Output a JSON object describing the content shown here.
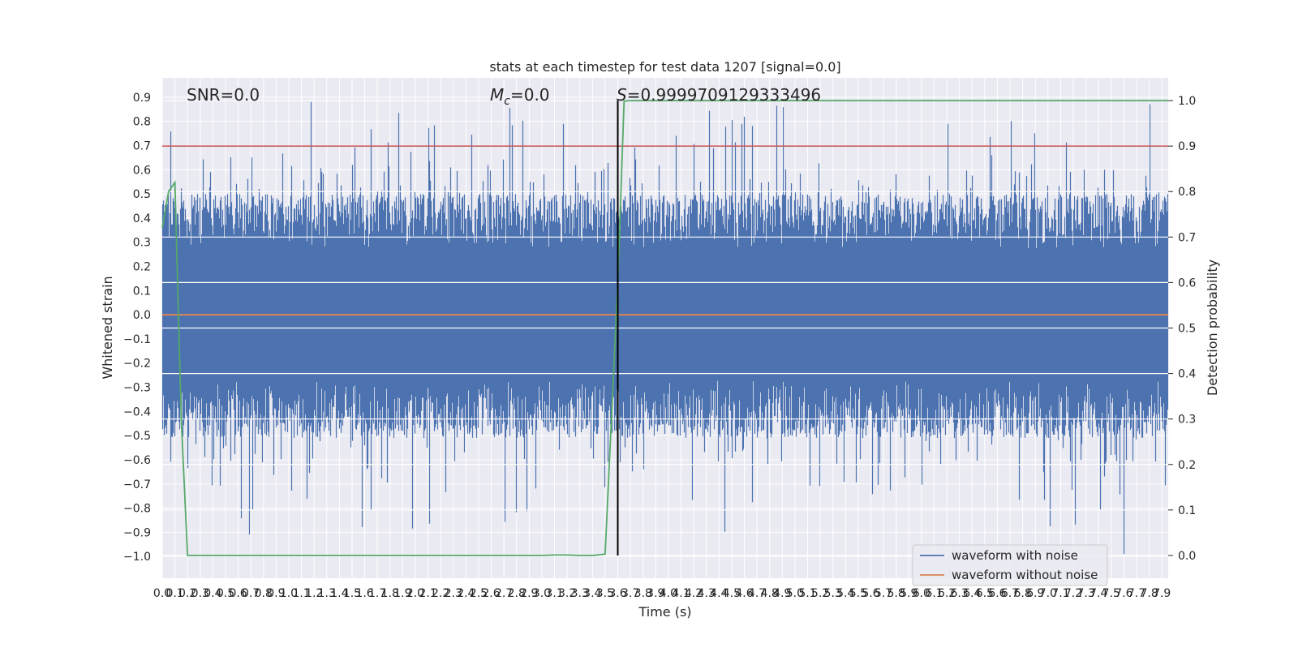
{
  "chart_data": {
    "type": "line",
    "title": "stats at each timestep for test data 1207 [signal=0.0]",
    "xlabel": "Time (s)",
    "ylabel": "Whitened strain",
    "ylabel_right": "Detection probability",
    "xlim": [
      0.0,
      7.95
    ],
    "ylim": [
      -1.09,
      0.98
    ],
    "ylim_right": [
      -0.05,
      1.05
    ],
    "x_ticks": [
      "0.0",
      "0.1",
      "0.2",
      "0.3",
      "0.4",
      "0.5",
      "0.6",
      "0.7",
      "0.8",
      "0.9",
      "1.0",
      "1.1",
      "1.2",
      "1.3",
      "1.4",
      "1.5",
      "1.6",
      "1.7",
      "1.8",
      "1.9",
      "2.0",
      "2.1",
      "2.2",
      "2.3",
      "2.4",
      "2.5",
      "2.6",
      "2.7",
      "2.8",
      "2.9",
      "3.0",
      "3.1",
      "3.2",
      "3.3",
      "3.4",
      "3.5",
      "3.6",
      "3.7",
      "3.8",
      "3.9",
      "4.0",
      "4.1",
      "4.2",
      "4.3",
      "4.4",
      "4.5",
      "4.6",
      "4.7",
      "4.8",
      "4.9",
      "5.0",
      "5.1",
      "5.2",
      "5.3",
      "5.4",
      "5.5",
      "5.6",
      "5.7",
      "5.8",
      "5.9",
      "6.0",
      "6.1",
      "6.2",
      "6.3",
      "6.4",
      "6.5",
      "6.6",
      "6.7",
      "6.8",
      "6.9",
      "7.0",
      "7.1",
      "7.2",
      "7.3",
      "7.4",
      "7.5",
      "7.6",
      "7.7",
      "7.8",
      "7.9"
    ],
    "y_ticks": [
      "0.9",
      "0.8",
      "0.7",
      "0.6",
      "0.5",
      "0.4",
      "0.3",
      "0.2",
      "0.1",
      "0.0",
      "−0.1",
      "−0.2",
      "−0.3",
      "−0.4",
      "−0.5",
      "−0.6",
      "−0.7",
      "−0.8",
      "−0.9",
      "−1.0"
    ],
    "y_tick_values": [
      0.9,
      0.8,
      0.7,
      0.6,
      0.5,
      0.4,
      0.3,
      0.2,
      0.1,
      0.0,
      -0.1,
      -0.2,
      -0.3,
      -0.4,
      -0.5,
      -0.6,
      -0.7,
      -0.8,
      -0.9,
      -1.0
    ],
    "y_right_ticks": [
      "1.0",
      "0.9",
      "0.8",
      "0.7",
      "0.6",
      "0.5",
      "0.4",
      "0.3",
      "0.2",
      "0.1",
      "0.0"
    ],
    "y_right_tick_values": [
      1.0,
      0.9,
      0.8,
      0.7,
      0.6,
      0.5,
      0.4,
      0.3,
      0.2,
      0.1,
      0.0
    ],
    "series": [
      {
        "name": "waveform with noise",
        "color": "#4c72b0",
        "description": "noise-only whitened strain, dense, roughly within -0.5..0.55 with spikes up to 0.88 and down to -0.99"
      },
      {
        "name": "waveform without noise",
        "color": "#dd8452",
        "x": [
          0.0,
          7.95
        ],
        "y": [
          0.0,
          0.0
        ]
      },
      {
        "name": "detection probability",
        "axis": "right",
        "color": "#55a868",
        "x": [
          0.0,
          0.05,
          0.1,
          0.15,
          0.2,
          0.5,
          1.0,
          1.5,
          2.0,
          2.5,
          3.0,
          3.1,
          3.2,
          3.3,
          3.4,
          3.5,
          3.55,
          3.6,
          3.65,
          3.7,
          4.0,
          5.0,
          6.0,
          7.0,
          7.95
        ],
        "y": [
          0.72,
          0.8,
          0.82,
          0.3,
          0.0,
          0.0,
          0.0,
          0.0,
          0.0,
          0.0,
          0.0,
          0.001,
          0.001,
          0.0,
          0.0,
          0.003,
          0.3,
          0.6,
          0.999,
          1.0,
          1.0,
          1.0,
          1.0,
          1.0,
          1.0
        ]
      }
    ],
    "threshold_line": {
      "axis": "right",
      "value": 0.9,
      "color": "#c44e52"
    },
    "vertical_marker": {
      "x": 3.6,
      "color": "#000000"
    },
    "annotations": {
      "snr": "SNR=0.0",
      "mc_symbol": "M",
      "mc_sub": "c",
      "mc_value": "=0.0",
      "s_symbol": "S",
      "s_value": "=0.9999709129333496"
    },
    "legend": {
      "position": "lower-right",
      "entries": [
        {
          "label": "waveform with noise",
          "color": "#4c72b0"
        },
        {
          "label": "waveform without noise",
          "color": "#dd8452"
        }
      ]
    },
    "style": {
      "background": "#eaeaf2",
      "grid": "#ffffff",
      "noise_color": "#4c72b0",
      "clean_color": "#dd8452",
      "prob_color": "#55a868",
      "threshold_color": "#c44e52",
      "marker_color": "#000000"
    }
  }
}
